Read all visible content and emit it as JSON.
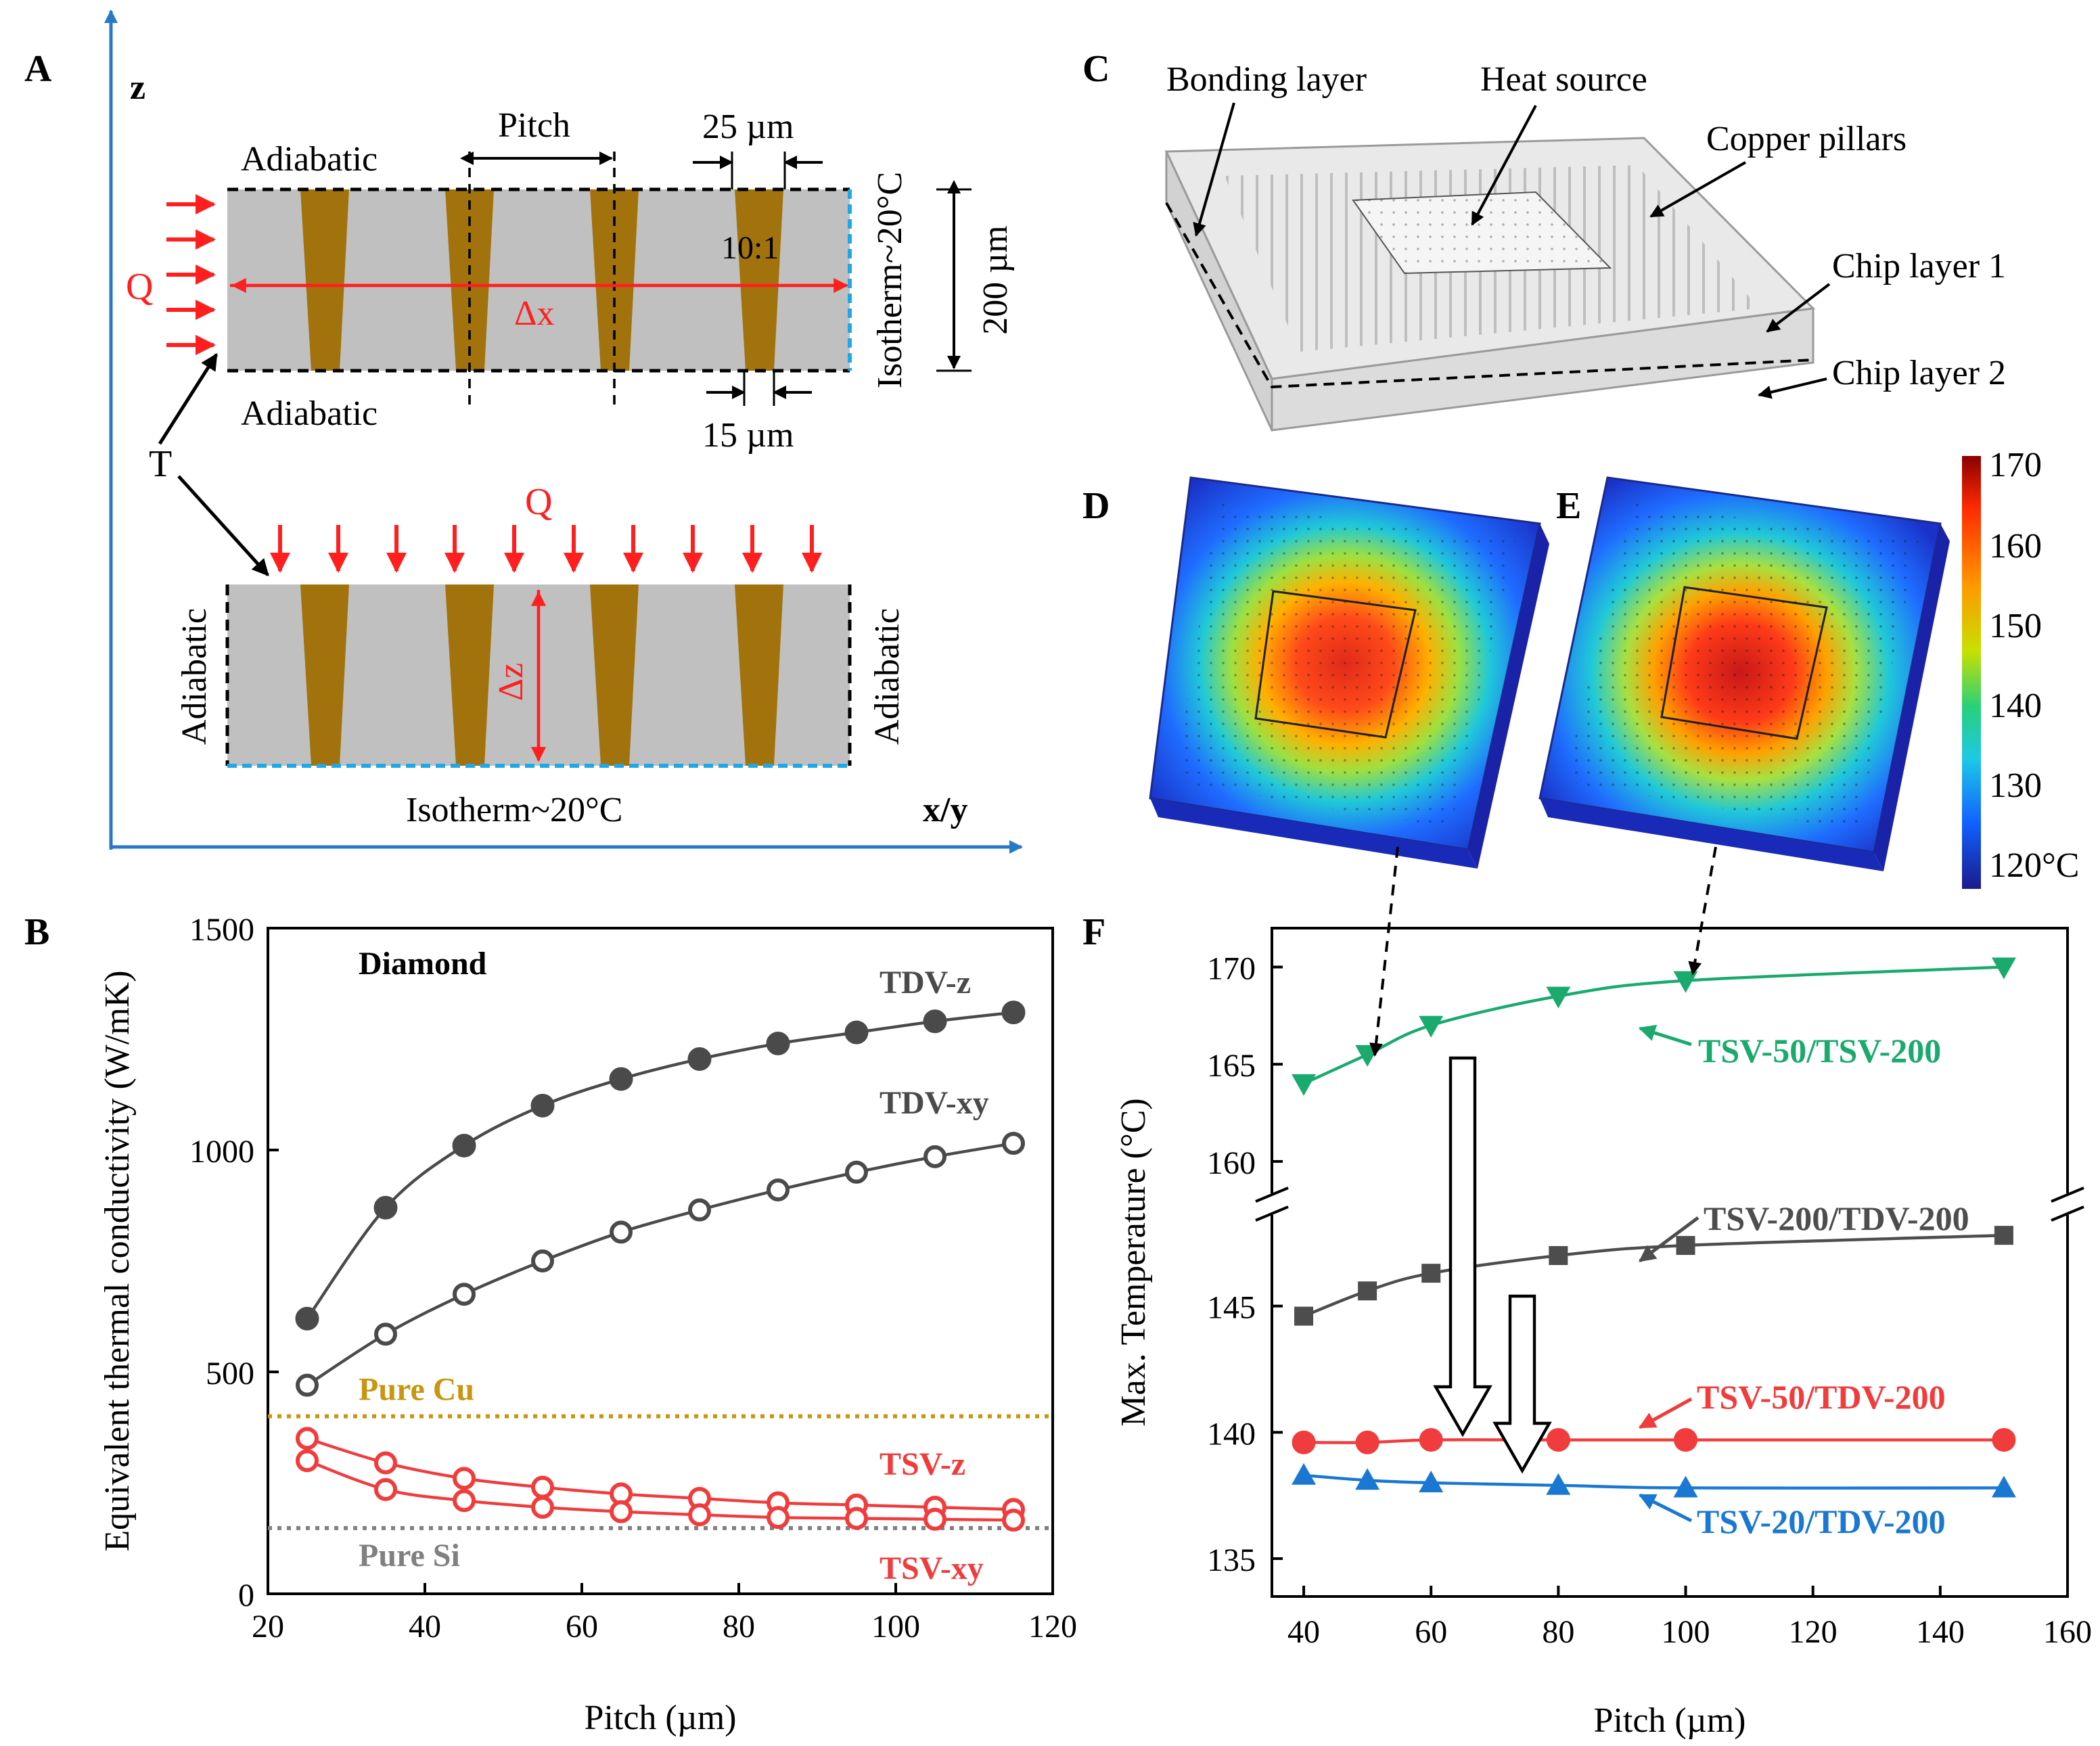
{
  "panelA": {
    "label": "A",
    "axis_z": "z",
    "axis_xy": "x/y",
    "top": {
      "adiabatic_top": "Adiabatic",
      "adiabatic_bottom": "Adiabatic",
      "pitch": "Pitch",
      "top_width": "25 µm",
      "bottom_width": "15 µm",
      "aspect_ratio": "10:1",
      "heat_flux": "Q",
      "dx": "Δx",
      "isotherm": "Isotherm~20°C",
      "thickness": "200 µm"
    },
    "temp_label": "T",
    "bottom": {
      "heat_flux": "Q",
      "adiabatic_left": "Adiabatic",
      "adiabatic_right": "Adiabatic",
      "dz": "Δz",
      "isotherm": "Isotherm~20°C"
    },
    "colors": {
      "silicon": "#c0c0c0",
      "copper": "#a2730d",
      "isotherm": "#1fa8e8",
      "arrow": "#ff1f1f"
    }
  },
  "panelB": {
    "label": "B"
  },
  "panelC": {
    "label": "C",
    "bonding_layer": "Bonding layer",
    "heat_source": "Heat source",
    "copper_pillars": "Copper pillars",
    "chip_layer_1": "Chip layer 1",
    "chip_layer_2": "Chip layer 2"
  },
  "panelD": {
    "label": "D"
  },
  "panelE": {
    "label": "E"
  },
  "colorbar": {
    "ticks": [
      "170",
      "160",
      "150",
      "140",
      "130",
      "120°C"
    ],
    "colors": [
      "#8b0000",
      "#ff2a00",
      "#ff9900",
      "#c8e000",
      "#28d07a",
      "#1ec8e6",
      "#1060ff",
      "#1a1a8c"
    ]
  },
  "panelF": {
    "label": "F"
  },
  "chart_data": [
    {
      "type": "line",
      "panel": "B",
      "title": "Diamond",
      "xlabel": "Pitch (µm)",
      "ylabel": "Equivalent thermal conductivity (W/mK)",
      "xlim": [
        20,
        120
      ],
      "ylim": [
        0,
        1500
      ],
      "xticks": [
        "20",
        "40",
        "60",
        "80",
        "100",
        "120"
      ],
      "yticks": [
        "0",
        "500",
        "1000",
        "1500"
      ],
      "x": [
        25,
        35,
        45,
        55,
        65,
        75,
        85,
        95,
        105,
        115
      ],
      "series": [
        {
          "name": "TDV-z",
          "color": "#4a4a4a",
          "marker": "filled-circle",
          "values": [
            620,
            870,
            1010,
            1100,
            1160,
            1205,
            1240,
            1265,
            1290,
            1310
          ]
        },
        {
          "name": "TDV-xy",
          "color": "#4a4a4a",
          "marker": "open-circle",
          "values": [
            470,
            585,
            675,
            750,
            815,
            865,
            910,
            950,
            985,
            1015
          ]
        },
        {
          "name": "TSV-z",
          "color": "#f03c3c",
          "marker": "open-circle",
          "values": [
            350,
            295,
            260,
            240,
            225,
            215,
            205,
            200,
            195,
            190
          ]
        },
        {
          "name": "TSV-xy",
          "color": "#f03c3c",
          "marker": "open-circle",
          "values": [
            300,
            235,
            210,
            195,
            185,
            178,
            172,
            170,
            168,
            166
          ]
        }
      ],
      "reference_lines": [
        {
          "name": "Pure Cu",
          "value": 400,
          "color": "#c8960f"
        },
        {
          "name": "Pure Si",
          "value": 148,
          "color": "#808080"
        }
      ]
    },
    {
      "type": "line",
      "panel": "F",
      "xlabel": "Pitch (µm)",
      "ylabel": "Max. Temperature (°C)",
      "xlim": [
        35,
        160
      ],
      "ylim": [
        133.5,
        172
      ],
      "axis_break": [
        148.5,
        160
      ],
      "xticks": [
        "40",
        "60",
        "80",
        "100",
        "120",
        "140",
        "160"
      ],
      "yticks": [
        "135",
        "140",
        "145",
        "160",
        "165",
        "170"
      ],
      "x": [
        40,
        50,
        60,
        80,
        100,
        150
      ],
      "series": [
        {
          "name": "TSV-50/TSV-200",
          "color": "#1aaa6e",
          "marker": "down-triangle",
          "values": [
            164.0,
            165.5,
            167.0,
            168.5,
            169.3,
            170.0
          ]
        },
        {
          "name": "TSV-200/TDV-200",
          "color": "#4d4d4d",
          "marker": "square",
          "values": [
            144.6,
            145.6,
            146.3,
            147.0,
            147.4,
            147.8
          ]
        },
        {
          "name": "TSV-50/TDV-200",
          "color": "#f03c3c",
          "marker": "circle",
          "values": [
            139.6,
            139.6,
            139.7,
            139.7,
            139.7,
            139.7
          ]
        },
        {
          "name": "TSV-20/TDV-200",
          "color": "#1a78d2",
          "marker": "up-triangle",
          "values": [
            138.3,
            138.1,
            138.0,
            137.9,
            137.8,
            137.8
          ]
        }
      ]
    }
  ]
}
